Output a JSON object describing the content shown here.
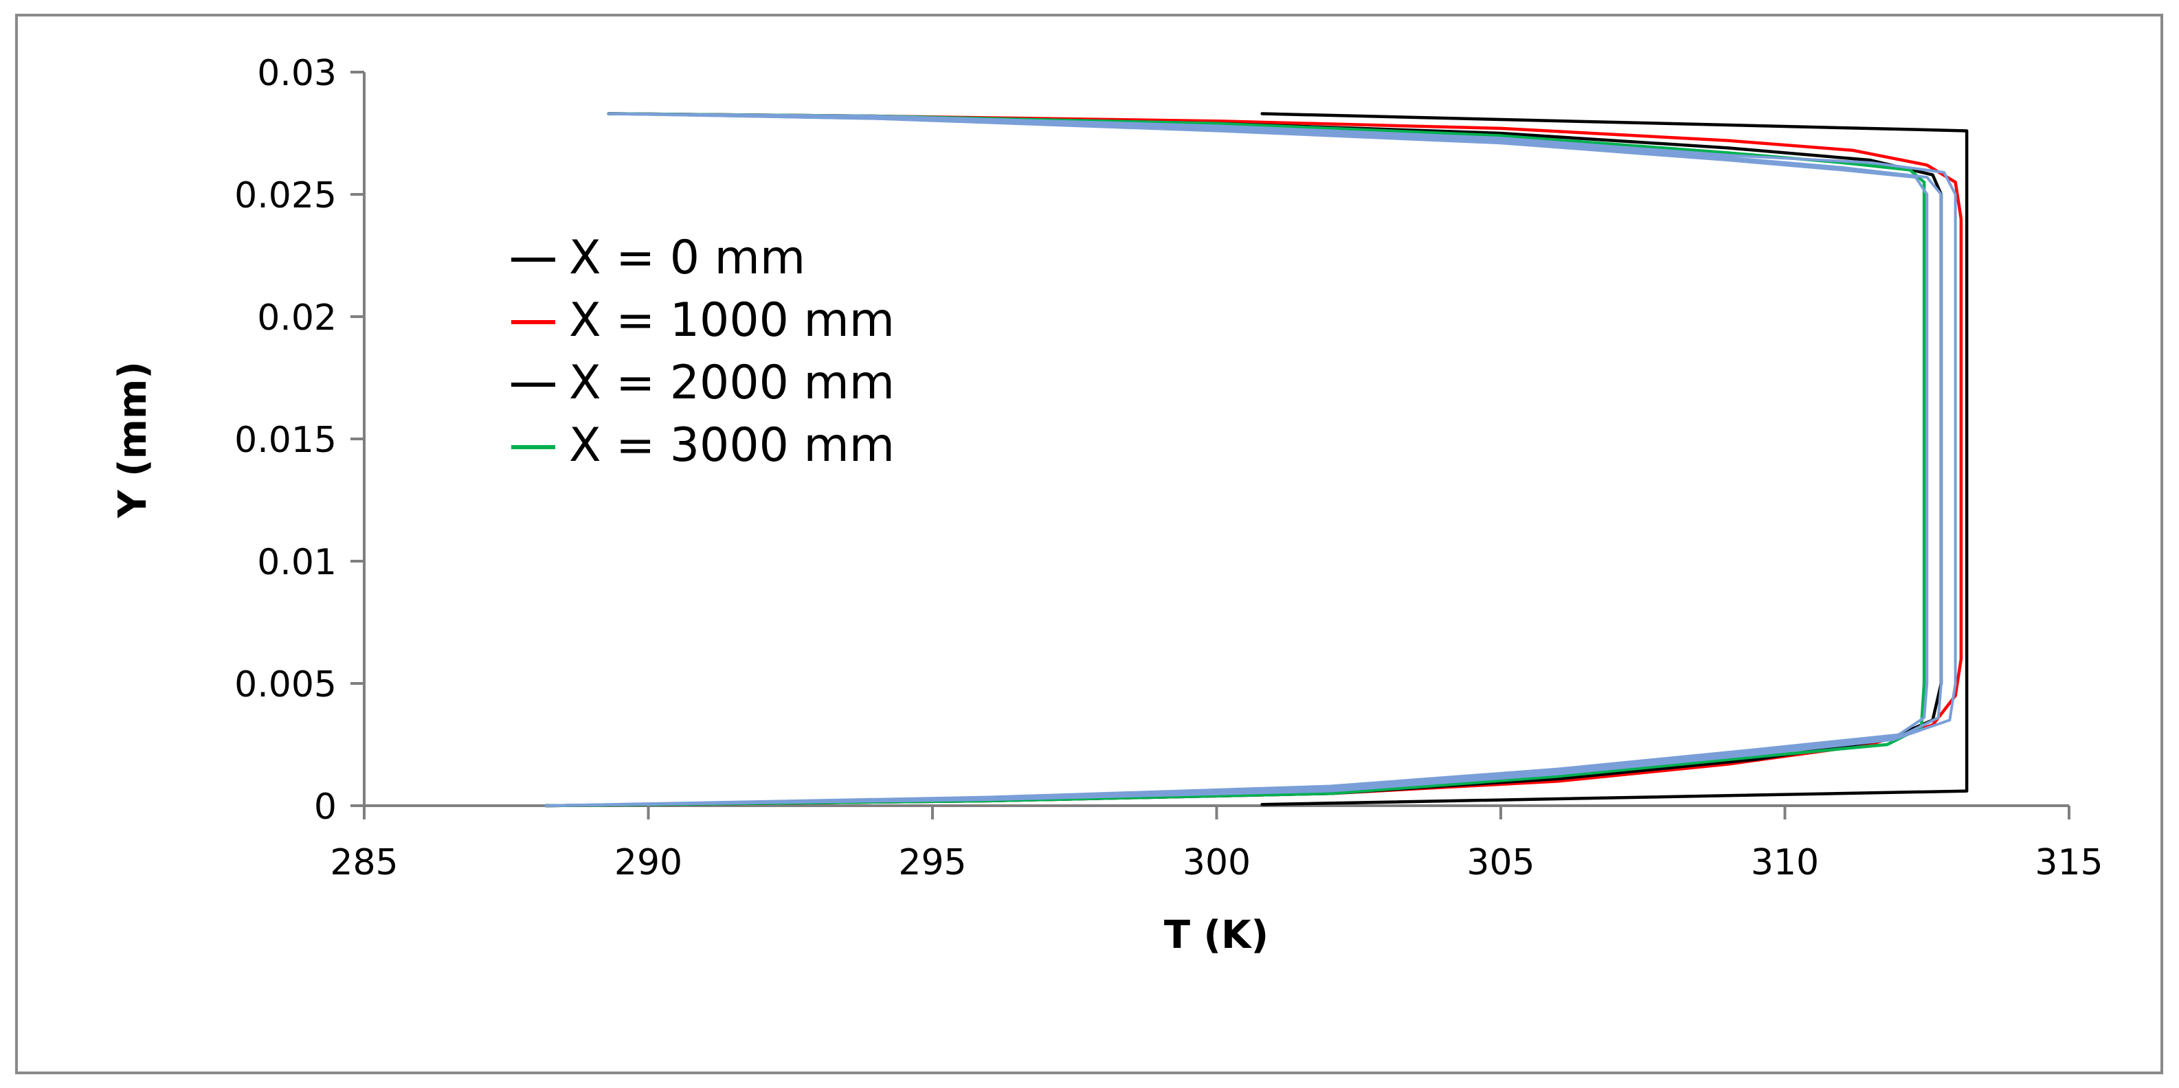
{
  "chart_data": {
    "type": "line",
    "title": "",
    "xlabel": "T (K)",
    "ylabel": "Y (mm)",
    "xlim": [
      285,
      315
    ],
    "ylim": [
      0,
      0.03
    ],
    "x_ticks": [
      "285",
      "290",
      "295",
      "300",
      "305",
      "310",
      "315"
    ],
    "y_ticks": [
      "0",
      "0.005",
      "0.01",
      "0.015",
      "0.02",
      "0.025",
      "0.03"
    ],
    "x_tick_values": [
      285,
      290,
      295,
      300,
      305,
      310,
      315
    ],
    "y_tick_values": [
      0,
      0.005,
      0.01,
      0.015,
      0.02,
      0.025,
      0.03
    ],
    "grid": false,
    "legend_position": "left",
    "series": [
      {
        "name": "X = 0        mm",
        "color": "#000000",
        "points": [
          [
            300.8,
            5e-05
          ],
          [
            313.2,
            0.0006
          ],
          [
            313.2,
            0.0276
          ],
          [
            300.8,
            0.0283
          ]
        ]
      },
      {
        "name": "X = 1000 mm",
        "color": "#ff0000",
        "points": [
          [
            288.2,
            0.0
          ],
          [
            296.0,
            0.0002
          ],
          [
            302.0,
            0.0005
          ],
          [
            306.0,
            0.001
          ],
          [
            309.0,
            0.0017
          ],
          [
            311.5,
            0.0025
          ],
          [
            312.6,
            0.0033
          ],
          [
            313.0,
            0.0045
          ],
          [
            313.1,
            0.006
          ],
          [
            313.1,
            0.024
          ],
          [
            313.0,
            0.0255
          ],
          [
            312.5,
            0.0262
          ],
          [
            311.2,
            0.0268
          ],
          [
            309.0,
            0.0272
          ],
          [
            305.0,
            0.0277
          ],
          [
            300.0,
            0.028
          ],
          [
            294.0,
            0.0282
          ],
          [
            289.3,
            0.0283
          ]
        ]
      },
      {
        "name": "X = 2000 mm",
        "color": "#000000",
        "points": [
          [
            288.2,
            0.0
          ],
          [
            296.0,
            0.0002
          ],
          [
            302.0,
            0.0005
          ],
          [
            306.0,
            0.0011
          ],
          [
            309.5,
            0.0019
          ],
          [
            311.8,
            0.0027
          ],
          [
            312.6,
            0.0035
          ],
          [
            312.75,
            0.005
          ],
          [
            312.75,
            0.025
          ],
          [
            312.6,
            0.0258
          ],
          [
            311.5,
            0.0264
          ],
          [
            309.0,
            0.0269
          ],
          [
            305.0,
            0.0275
          ],
          [
            300.0,
            0.0279
          ],
          [
            294.0,
            0.0282
          ],
          [
            289.3,
            0.0283
          ]
        ]
      },
      {
        "name": "X = 3000 mm",
        "color": "#00b050",
        "points": [
          [
            288.2,
            0.0
          ],
          [
            296.0,
            0.0002
          ],
          [
            302.0,
            0.0005
          ],
          [
            306.0,
            0.0012
          ],
          [
            309.5,
            0.002
          ],
          [
            311.8,
            0.0025
          ],
          [
            312.4,
            0.0032
          ],
          [
            312.45,
            0.005
          ],
          [
            312.45,
            0.0255
          ],
          [
            312.2,
            0.026
          ],
          [
            311.0,
            0.0263
          ],
          [
            309.0,
            0.0267
          ],
          [
            305.0,
            0.0274
          ],
          [
            300.0,
            0.0279
          ],
          [
            294.0,
            0.0282
          ],
          [
            289.3,
            0.0283
          ]
        ]
      },
      {
        "name": "",
        "color": "#7a9fd8",
        "points": [
          [
            288.2,
            0.0
          ],
          [
            296.0,
            0.00025
          ],
          [
            302.0,
            0.0006
          ],
          [
            306.0,
            0.0013
          ],
          [
            309.5,
            0.0021
          ],
          [
            311.9,
            0.0027
          ],
          [
            312.9,
            0.0035
          ],
          [
            313.0,
            0.005
          ],
          [
            313.0,
            0.025
          ],
          [
            312.8,
            0.0259
          ],
          [
            311.5,
            0.0263
          ],
          [
            309.0,
            0.0266
          ],
          [
            305.0,
            0.0273
          ],
          [
            300.0,
            0.0278
          ],
          [
            294.0,
            0.0282
          ],
          [
            289.3,
            0.0283
          ]
        ]
      },
      {
        "name": "",
        "color": "#7a9fd8",
        "points": [
          [
            288.2,
            0.0
          ],
          [
            296.0,
            0.0003
          ],
          [
            302.0,
            0.0007
          ],
          [
            306.0,
            0.0014
          ],
          [
            309.5,
            0.0022
          ],
          [
            312.0,
            0.0028
          ],
          [
            312.7,
            0.0036
          ],
          [
            312.75,
            0.005
          ],
          [
            312.75,
            0.025
          ],
          [
            312.5,
            0.0257
          ],
          [
            311.0,
            0.0261
          ],
          [
            309.0,
            0.0265
          ],
          [
            305.0,
            0.0272
          ],
          [
            300.0,
            0.0277
          ],
          [
            294.0,
            0.0281
          ],
          [
            289.3,
            0.0283
          ]
        ]
      },
      {
        "name": "",
        "color": "#7a9fd8",
        "points": [
          [
            288.2,
            0.0
          ],
          [
            296.0,
            0.00035
          ],
          [
            302.0,
            0.0008
          ],
          [
            306.0,
            0.0015
          ],
          [
            309.5,
            0.0023
          ],
          [
            312.0,
            0.0029
          ],
          [
            312.45,
            0.0036
          ],
          [
            312.5,
            0.005
          ],
          [
            312.5,
            0.025
          ],
          [
            312.3,
            0.0257
          ],
          [
            311.0,
            0.026
          ],
          [
            309.0,
            0.0264
          ],
          [
            305.0,
            0.0271
          ],
          [
            300.0,
            0.0276
          ],
          [
            294.0,
            0.0281
          ],
          [
            289.3,
            0.0283
          ]
        ]
      }
    ]
  }
}
